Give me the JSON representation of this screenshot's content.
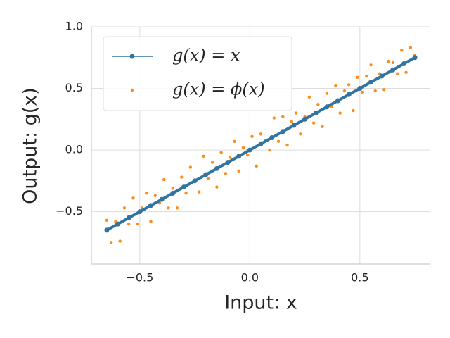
{
  "chart_data": {
    "type": "line",
    "xlabel": "Input: x",
    "ylabel": "Output: g(x)",
    "xlim": [
      -0.72,
      0.82
    ],
    "ylim": [
      -0.925,
      1.0
    ],
    "xticks": [
      {
        "value": -0.5,
        "label": "−0.5"
      },
      {
        "value": 0.0,
        "label": "0.0"
      },
      {
        "value": 0.5,
        "label": "0.5"
      }
    ],
    "yticks": [
      {
        "value": -0.5,
        "label": "−0.5"
      },
      {
        "value": 0.0,
        "label": "0.0"
      },
      {
        "value": 0.5,
        "label": "0.5"
      },
      {
        "value": 1.0,
        "label": "1.0"
      }
    ],
    "grid": true,
    "legend": "upper left",
    "series": [
      {
        "name": "g(x) = x",
        "type": "line",
        "color": "#3274a1",
        "x": [
          -0.65,
          -0.6,
          -0.55,
          -0.5,
          -0.45,
          -0.4,
          -0.35,
          -0.3,
          -0.25,
          -0.2,
          -0.15,
          -0.1,
          -0.05,
          0.0,
          0.05,
          0.1,
          0.15,
          0.2,
          0.25,
          0.3,
          0.35,
          0.4,
          0.45,
          0.5,
          0.55,
          0.6,
          0.65,
          0.7,
          0.75
        ],
        "values": [
          -0.65,
          -0.6,
          -0.55,
          -0.5,
          -0.45,
          -0.4,
          -0.35,
          -0.3,
          -0.25,
          -0.2,
          -0.15,
          -0.1,
          -0.05,
          0.0,
          0.05,
          0.1,
          0.15,
          0.2,
          0.25,
          0.3,
          0.35,
          0.4,
          0.45,
          0.5,
          0.55,
          0.6,
          0.65,
          0.7,
          0.75
        ]
      },
      {
        "name": "g(x) = ϕ(x)",
        "type": "scatter",
        "color": "#ff8c1a",
        "x": [
          -0.65,
          -0.63,
          -0.61,
          -0.59,
          -0.57,
          -0.55,
          -0.53,
          -0.51,
          -0.49,
          -0.47,
          -0.45,
          -0.43,
          -0.41,
          -0.39,
          -0.37,
          -0.35,
          -0.33,
          -0.31,
          -0.29,
          -0.27,
          -0.25,
          -0.23,
          -0.21,
          -0.19,
          -0.17,
          -0.15,
          -0.13,
          -0.11,
          -0.09,
          -0.07,
          -0.05,
          -0.03,
          -0.01,
          0.01,
          0.03,
          0.05,
          0.07,
          0.09,
          0.11,
          0.13,
          0.15,
          0.17,
          0.19,
          0.21,
          0.23,
          0.25,
          0.27,
          0.29,
          0.31,
          0.33,
          0.35,
          0.37,
          0.39,
          0.41,
          0.43,
          0.45,
          0.47,
          0.49,
          0.51,
          0.53,
          0.55,
          0.57,
          0.59,
          0.61,
          0.63,
          0.65,
          0.67,
          0.69,
          0.71,
          0.73,
          0.75
        ],
        "values": [
          -0.57,
          -0.75,
          -0.58,
          -0.74,
          -0.47,
          -0.6,
          -0.39,
          -0.6,
          -0.47,
          -0.35,
          -0.58,
          -0.37,
          -0.43,
          -0.24,
          -0.47,
          -0.31,
          -0.47,
          -0.22,
          -0.35,
          -0.14,
          -0.25,
          -0.34,
          -0.05,
          -0.23,
          -0.1,
          -0.3,
          -0.02,
          -0.19,
          -0.06,
          0.07,
          -0.17,
          0.02,
          -0.04,
          0.11,
          -0.13,
          0.13,
          0.08,
          0.0,
          0.26,
          0.07,
          0.27,
          0.04,
          0.23,
          0.3,
          0.13,
          0.27,
          0.43,
          0.22,
          0.37,
          0.19,
          0.46,
          0.35,
          0.52,
          0.3,
          0.48,
          0.53,
          0.32,
          0.59,
          0.47,
          0.6,
          0.69,
          0.48,
          0.62,
          0.49,
          0.72,
          0.71,
          0.62,
          0.81,
          0.63,
          0.83,
          0.77
        ]
      }
    ]
  }
}
